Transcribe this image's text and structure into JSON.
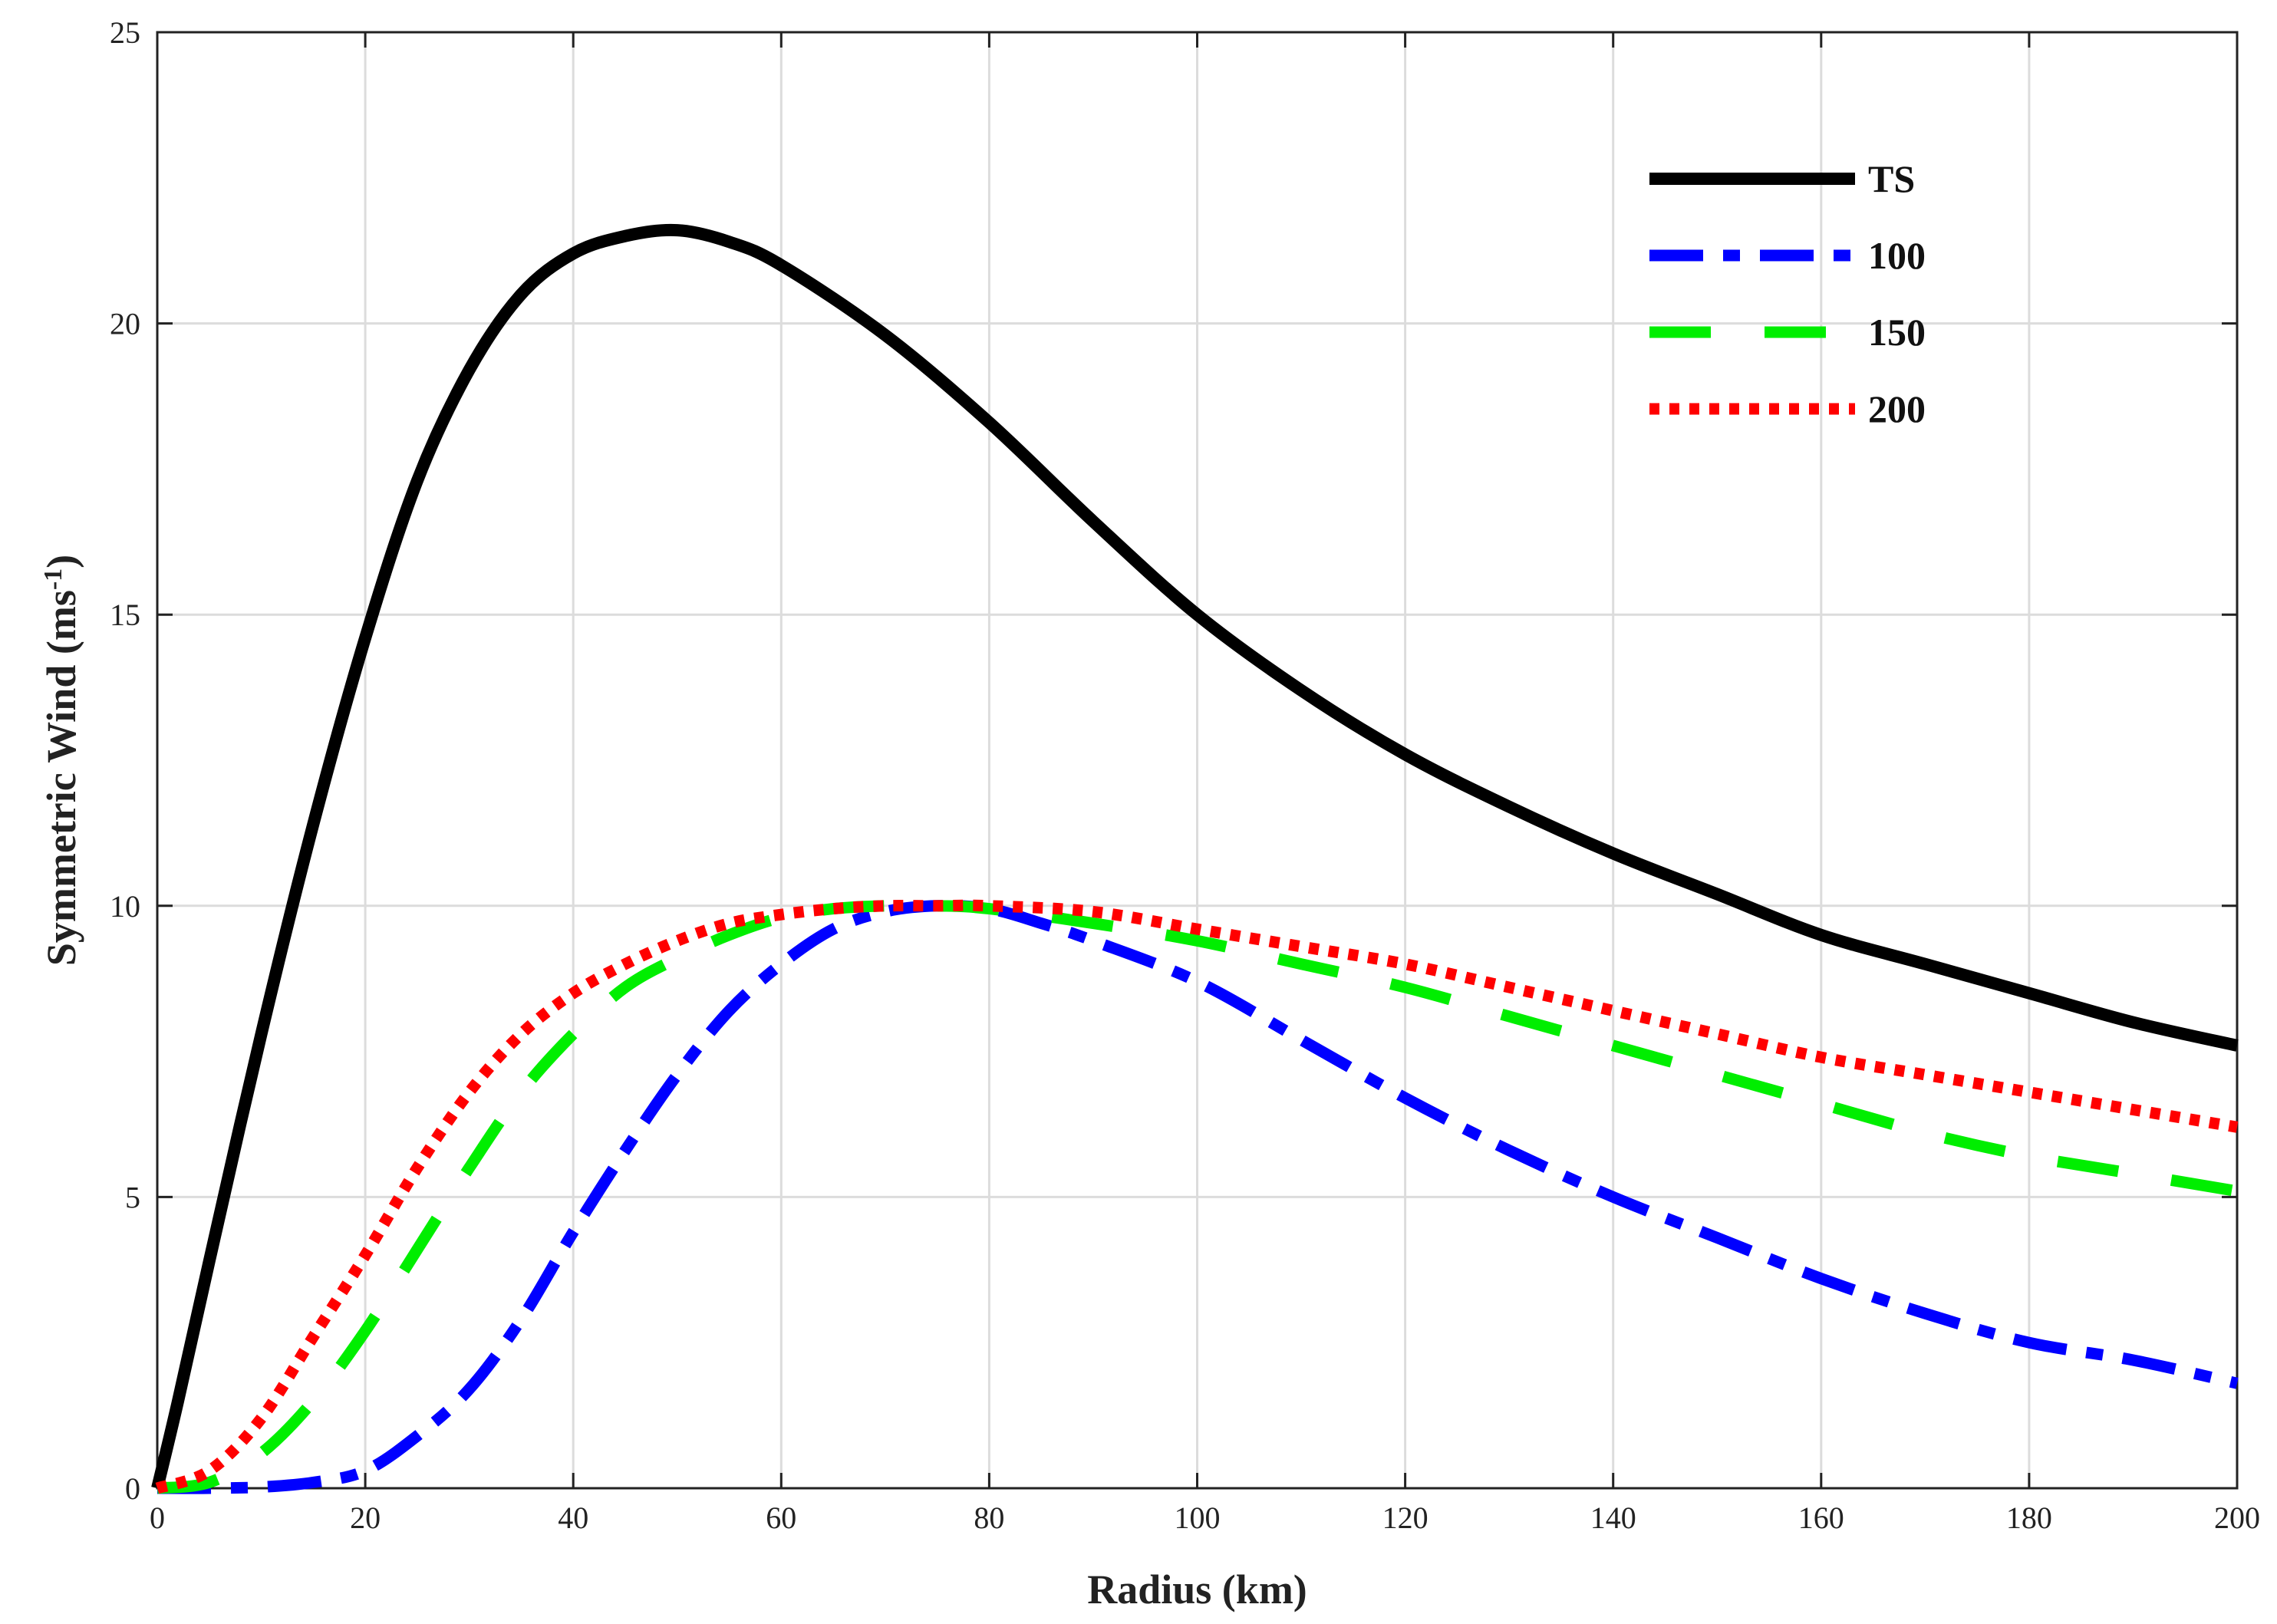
{
  "chart_data": {
    "type": "line",
    "title": "",
    "xlabel": "Radius (km)",
    "ylabel_main": "Symmetric Wind (ms",
    "ylabel_sup": "-1",
    "ylabel_close": ")",
    "xlim": [
      0,
      200
    ],
    "ylim": [
      0,
      25
    ],
    "xticks": [
      0,
      20,
      40,
      60,
      80,
      100,
      120,
      140,
      160,
      180,
      200
    ],
    "yticks": [
      0,
      5,
      10,
      15,
      20,
      25
    ],
    "grid": true,
    "legend_position": "top-right",
    "series": [
      {
        "name": "TS",
        "color": "#000000",
        "style": "solid",
        "x": [
          0,
          2,
          5,
          10,
          15,
          20,
          25,
          30,
          35,
          40,
          45,
          50,
          55,
          60,
          70,
          80,
          90,
          100,
          110,
          120,
          130,
          140,
          150,
          160,
          170,
          180,
          190,
          200
        ],
        "y": [
          0,
          1.5,
          3.9,
          7.8,
          11.4,
          14.6,
          17.3,
          19.2,
          20.5,
          21.2,
          21.5,
          21.6,
          21.4,
          21.0,
          19.8,
          18.3,
          16.6,
          15.0,
          13.7,
          12.6,
          11.7,
          10.9,
          10.2,
          9.5,
          9.0,
          8.5,
          8.0,
          7.6
        ]
      },
      {
        "name": "100",
        "color": "#0000ff",
        "style": "dashdot",
        "x": [
          0,
          5,
          10,
          15,
          20,
          25,
          30,
          35,
          40,
          45,
          50,
          55,
          60,
          65,
          70,
          75,
          80,
          85,
          90,
          100,
          110,
          120,
          130,
          140,
          150,
          160,
          170,
          180,
          190,
          200
        ],
        "y": [
          0,
          0,
          0.02,
          0.1,
          0.3,
          0.9,
          1.7,
          2.9,
          4.4,
          5.8,
          7.1,
          8.2,
          9.0,
          9.6,
          9.9,
          10.0,
          9.95,
          9.7,
          9.4,
          8.7,
          7.7,
          6.7,
          5.8,
          5.0,
          4.3,
          3.6,
          3.0,
          2.5,
          2.2,
          1.8
        ]
      },
      {
        "name": "150",
        "color": "#00ee00",
        "style": "dashed",
        "x": [
          0,
          5,
          10,
          15,
          20,
          25,
          30,
          35,
          40,
          45,
          50,
          55,
          60,
          65,
          70,
          75,
          80,
          90,
          100,
          110,
          120,
          130,
          140,
          150,
          160,
          170,
          180,
          190,
          200
        ],
        "y": [
          0,
          0.1,
          0.6,
          1.5,
          2.7,
          4.1,
          5.5,
          6.8,
          7.8,
          8.6,
          9.1,
          9.5,
          9.8,
          9.95,
          10.0,
          10.0,
          9.95,
          9.7,
          9.4,
          9.0,
          8.6,
          8.1,
          7.6,
          7.1,
          6.6,
          6.1,
          5.7,
          5.4,
          5.1
        ]
      },
      {
        "name": "200",
        "color": "#ff0000",
        "style": "dotted",
        "x": [
          0,
          5,
          10,
          15,
          20,
          25,
          30,
          35,
          40,
          45,
          50,
          55,
          60,
          65,
          70,
          75,
          80,
          90,
          100,
          110,
          120,
          130,
          140,
          150,
          160,
          170,
          180,
          190,
          200
        ],
        "y": [
          0,
          0.3,
          1.2,
          2.6,
          4.0,
          5.5,
          6.8,
          7.8,
          8.5,
          9.0,
          9.4,
          9.7,
          9.85,
          9.95,
          10.0,
          10.0,
          10.0,
          9.9,
          9.6,
          9.3,
          9.0,
          8.6,
          8.2,
          7.8,
          7.4,
          7.1,
          6.8,
          6.5,
          6.2
        ]
      }
    ]
  }
}
